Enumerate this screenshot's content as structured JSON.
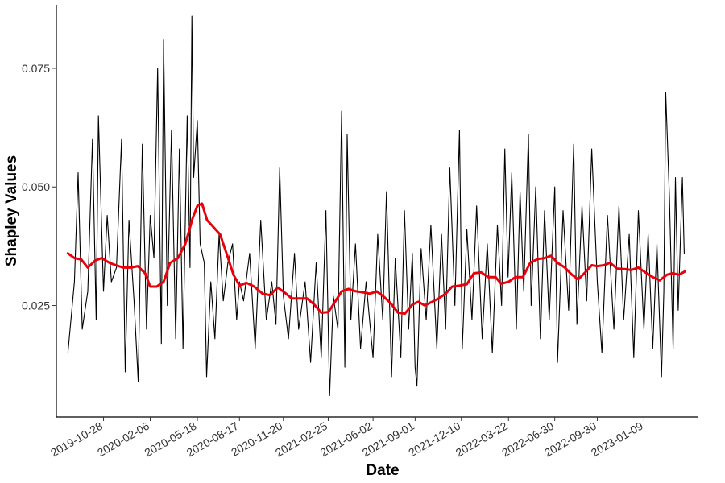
{
  "chart_data": {
    "type": "line",
    "title": "",
    "xlabel": "Date",
    "ylabel": "Shapley Values",
    "x_ticks": [
      "2019-10-28",
      "2020-02-06",
      "2020-05-18",
      "2020-08-17",
      "2020-11-20",
      "2021-02-25",
      "2021-06-02",
      "2021-09-01",
      "2021-12-10",
      "2022-03-22",
      "2022-06-30",
      "2022-09-30",
      "2023-01-09"
    ],
    "y_ticks": [
      0.025,
      0.05,
      0.075
    ],
    "y_tick_labels": [
      "0.025",
      "0.050",
      "0.075"
    ],
    "xlim": [
      "2019-07-18",
      "2023-05-05"
    ],
    "ylim": [
      0.0015,
      0.0884
    ],
    "grid": false,
    "legend": "none",
    "series": [
      {
        "color": "#000000",
        "points": [
          [
            "2019-08-12",
            0.015
          ],
          [
            "2019-08-26",
            0.03
          ],
          [
            "2019-09-03",
            0.053
          ],
          [
            "2019-09-12",
            0.02
          ],
          [
            "2019-09-24",
            0.028
          ],
          [
            "2019-10-04",
            0.06
          ],
          [
            "2019-10-12",
            0.022
          ],
          [
            "2019-10-17",
            0.065
          ],
          [
            "2019-10-28",
            0.028
          ],
          [
            "2019-11-05",
            0.044
          ],
          [
            "2019-11-14",
            0.03
          ],
          [
            "2019-11-25",
            0.033
          ],
          [
            "2019-12-06",
            0.06
          ],
          [
            "2019-12-14",
            0.011
          ],
          [
            "2019-12-22",
            0.043
          ],
          [
            "2020-01-02",
            0.026
          ],
          [
            "2020-01-11",
            0.009
          ],
          [
            "2020-01-20",
            0.059
          ],
          [
            "2020-01-29",
            0.02
          ],
          [
            "2020-02-06",
            0.044
          ],
          [
            "2020-02-14",
            0.035
          ],
          [
            "2020-02-22",
            0.075
          ],
          [
            "2020-03-01",
            0.017
          ],
          [
            "2020-03-06",
            0.081
          ],
          [
            "2020-03-14",
            0.025
          ],
          [
            "2020-03-23",
            0.062
          ],
          [
            "2020-04-01",
            0.018
          ],
          [
            "2020-04-09",
            0.058
          ],
          [
            "2020-04-17",
            0.016
          ],
          [
            "2020-04-26",
            0.065
          ],
          [
            "2020-05-02",
            0.033
          ],
          [
            "2020-05-06",
            0.086
          ],
          [
            "2020-05-10",
            0.052
          ],
          [
            "2020-05-18",
            0.064
          ],
          [
            "2020-05-24",
            0.038
          ],
          [
            "2020-06-02",
            0.034
          ],
          [
            "2020-06-07",
            0.01
          ],
          [
            "2020-06-16",
            0.03
          ],
          [
            "2020-06-25",
            0.018
          ],
          [
            "2020-07-04",
            0.04
          ],
          [
            "2020-07-13",
            0.026
          ],
          [
            "2020-07-23",
            0.034
          ],
          [
            "2020-08-02",
            0.038
          ],
          [
            "2020-08-11",
            0.022
          ],
          [
            "2020-08-17",
            0.03
          ],
          [
            "2020-08-26",
            0.026
          ],
          [
            "2020-09-08",
            0.036
          ],
          [
            "2020-09-20",
            0.016
          ],
          [
            "2020-10-02",
            0.043
          ],
          [
            "2020-10-14",
            0.022
          ],
          [
            "2020-10-26",
            0.03
          ],
          [
            "2020-11-04",
            0.021
          ],
          [
            "2020-11-12",
            0.054
          ],
          [
            "2020-11-20",
            0.027
          ],
          [
            "2020-12-01",
            0.018
          ],
          [
            "2020-12-14",
            0.036
          ],
          [
            "2020-12-23",
            0.02
          ],
          [
            "2021-01-06",
            0.03
          ],
          [
            "2021-01-18",
            0.013
          ],
          [
            "2021-01-30",
            0.034
          ],
          [
            "2021-02-10",
            0.014
          ],
          [
            "2021-02-20",
            0.045
          ],
          [
            "2021-02-28",
            0.006
          ],
          [
            "2021-03-08",
            0.027
          ],
          [
            "2021-03-18",
            0.02
          ],
          [
            "2021-03-26",
            0.066
          ],
          [
            "2021-04-02",
            0.012
          ],
          [
            "2021-04-07",
            0.061
          ],
          [
            "2021-04-15",
            0.022
          ],
          [
            "2021-04-25",
            0.038
          ],
          [
            "2021-05-06",
            0.016
          ],
          [
            "2021-05-18",
            0.03
          ],
          [
            "2021-06-02",
            0.014
          ],
          [
            "2021-06-12",
            0.04
          ],
          [
            "2021-06-23",
            0.022
          ],
          [
            "2021-07-01",
            0.049
          ],
          [
            "2021-07-12",
            0.01
          ],
          [
            "2021-07-20",
            0.035
          ],
          [
            "2021-08-01",
            0.014
          ],
          [
            "2021-08-09",
            0.045
          ],
          [
            "2021-08-18",
            0.02
          ],
          [
            "2021-08-26",
            0.036
          ],
          [
            "2021-09-01",
            0.012
          ],
          [
            "2021-09-05",
            0.008
          ],
          [
            "2021-09-14",
            0.037
          ],
          [
            "2021-09-25",
            0.022
          ],
          [
            "2021-10-05",
            0.042
          ],
          [
            "2021-10-18",
            0.016
          ],
          [
            "2021-10-28",
            0.04
          ],
          [
            "2021-11-06",
            0.02
          ],
          [
            "2021-11-15",
            0.054
          ],
          [
            "2021-11-26",
            0.025
          ],
          [
            "2021-12-06",
            0.062
          ],
          [
            "2021-12-12",
            0.016
          ],
          [
            "2021-12-22",
            0.041
          ],
          [
            "2022-01-02",
            0.022
          ],
          [
            "2022-01-12",
            0.046
          ],
          [
            "2022-01-24",
            0.018
          ],
          [
            "2022-02-04",
            0.038
          ],
          [
            "2022-02-15",
            0.015
          ],
          [
            "2022-02-26",
            0.042
          ],
          [
            "2022-03-07",
            0.025
          ],
          [
            "2022-03-14",
            0.058
          ],
          [
            "2022-03-21",
            0.031
          ],
          [
            "2022-03-29",
            0.053
          ],
          [
            "2022-04-08",
            0.02
          ],
          [
            "2022-04-16",
            0.049
          ],
          [
            "2022-04-24",
            0.028
          ],
          [
            "2022-05-04",
            0.061
          ],
          [
            "2022-05-10",
            0.025
          ],
          [
            "2022-05-20",
            0.05
          ],
          [
            "2022-05-30",
            0.018
          ],
          [
            "2022-06-08",
            0.045
          ],
          [
            "2022-06-18",
            0.022
          ],
          [
            "2022-06-30",
            0.05
          ],
          [
            "2022-07-06",
            0.013
          ],
          [
            "2022-07-18",
            0.045
          ],
          [
            "2022-07-30",
            0.024
          ],
          [
            "2022-08-10",
            0.059
          ],
          [
            "2022-08-17",
            0.021
          ],
          [
            "2022-08-28",
            0.046
          ],
          [
            "2022-09-07",
            0.026
          ],
          [
            "2022-09-18",
            0.058
          ],
          [
            "2022-09-30",
            0.03
          ],
          [
            "2022-10-10",
            0.015
          ],
          [
            "2022-10-22",
            0.044
          ],
          [
            "2022-11-05",
            0.02
          ],
          [
            "2022-11-16",
            0.046
          ],
          [
            "2022-11-26",
            0.022
          ],
          [
            "2022-12-08",
            0.04
          ],
          [
            "2022-12-18",
            0.014
          ],
          [
            "2022-12-28",
            0.045
          ],
          [
            "2023-01-09",
            0.02
          ],
          [
            "2023-01-18",
            0.04
          ],
          [
            "2023-01-28",
            0.016
          ],
          [
            "2023-02-06",
            0.038
          ],
          [
            "2023-02-16",
            0.01
          ],
          [
            "2023-02-21",
            0.028
          ],
          [
            "2023-02-25",
            0.07
          ],
          [
            "2023-03-05",
            0.048
          ],
          [
            "2023-03-13",
            0.016
          ],
          [
            "2023-03-18",
            0.052
          ],
          [
            "2023-03-24",
            0.024
          ],
          [
            "2023-04-02",
            0.052
          ],
          [
            "2023-04-06",
            0.036
          ]
        ]
      },
      {
        "color": "#e8000b",
        "points": [
          [
            "2019-08-12",
            0.036
          ],
          [
            "2019-08-26",
            0.035
          ],
          [
            "2019-09-10",
            0.0347
          ],
          [
            "2019-09-24",
            0.033
          ],
          [
            "2019-10-10",
            0.0345
          ],
          [
            "2019-10-24",
            0.035
          ],
          [
            "2019-11-10",
            0.034
          ],
          [
            "2019-11-24",
            0.0335
          ],
          [
            "2019-12-10",
            0.033
          ],
          [
            "2019-12-26",
            0.033
          ],
          [
            "2020-01-10",
            0.0333
          ],
          [
            "2020-01-26",
            0.0318
          ],
          [
            "2020-02-06",
            0.029
          ],
          [
            "2020-02-20",
            0.029
          ],
          [
            "2020-03-06",
            0.03
          ],
          [
            "2020-03-20",
            0.034
          ],
          [
            "2020-04-06",
            0.035
          ],
          [
            "2020-04-22",
            0.038
          ],
          [
            "2020-05-08",
            0.0435
          ],
          [
            "2020-05-18",
            0.046
          ],
          [
            "2020-05-28",
            0.0465
          ],
          [
            "2020-06-08",
            0.043
          ],
          [
            "2020-06-22",
            0.0415
          ],
          [
            "2020-07-06",
            0.04
          ],
          [
            "2020-07-20",
            0.036
          ],
          [
            "2020-08-04",
            0.0315
          ],
          [
            "2020-08-17",
            0.0292
          ],
          [
            "2020-09-01",
            0.0298
          ],
          [
            "2020-09-18",
            0.029
          ],
          [
            "2020-10-06",
            0.0275
          ],
          [
            "2020-10-22",
            0.0272
          ],
          [
            "2020-11-08",
            0.0288
          ],
          [
            "2020-11-22",
            0.0278
          ],
          [
            "2020-12-08",
            0.0265
          ],
          [
            "2020-12-24",
            0.0265
          ],
          [
            "2021-01-10",
            0.0265
          ],
          [
            "2021-01-26",
            0.0252
          ],
          [
            "2021-02-10",
            0.0235
          ],
          [
            "2021-02-25",
            0.0236
          ],
          [
            "2021-03-10",
            0.0255
          ],
          [
            "2021-03-26",
            0.028
          ],
          [
            "2021-04-10",
            0.0285
          ],
          [
            "2021-04-26",
            0.028
          ],
          [
            "2021-05-10",
            0.0278
          ],
          [
            "2021-05-26",
            0.0275
          ],
          [
            "2021-06-10",
            0.028
          ],
          [
            "2021-06-26",
            0.0268
          ],
          [
            "2021-07-10",
            0.0255
          ],
          [
            "2021-07-26",
            0.0235
          ],
          [
            "2021-08-10",
            0.0233
          ],
          [
            "2021-08-26",
            0.0252
          ],
          [
            "2021-09-08",
            0.0258
          ],
          [
            "2021-09-22",
            0.025
          ],
          [
            "2021-10-08",
            0.0258
          ],
          [
            "2021-10-22",
            0.0265
          ],
          [
            "2021-11-06",
            0.0275
          ],
          [
            "2021-11-20",
            0.029
          ],
          [
            "2021-12-06",
            0.0292
          ],
          [
            "2021-12-22",
            0.0295
          ],
          [
            "2022-01-06",
            0.0318
          ],
          [
            "2022-01-22",
            0.032
          ],
          [
            "2022-02-06",
            0.031
          ],
          [
            "2022-02-22",
            0.031
          ],
          [
            "2022-03-06",
            0.0296
          ],
          [
            "2022-03-22",
            0.03
          ],
          [
            "2022-04-06",
            0.031
          ],
          [
            "2022-04-22",
            0.031
          ],
          [
            "2022-05-08",
            0.034
          ],
          [
            "2022-05-24",
            0.0348
          ],
          [
            "2022-06-08",
            0.035
          ],
          [
            "2022-06-22",
            0.0355
          ],
          [
            "2022-07-06",
            0.034
          ],
          [
            "2022-07-22",
            0.033
          ],
          [
            "2022-08-06",
            0.0315
          ],
          [
            "2022-08-20",
            0.0305
          ],
          [
            "2022-09-04",
            0.032
          ],
          [
            "2022-09-18",
            0.0335
          ],
          [
            "2022-09-30",
            0.0333
          ],
          [
            "2022-10-14",
            0.0335
          ],
          [
            "2022-10-28",
            0.034
          ],
          [
            "2022-11-12",
            0.0328
          ],
          [
            "2022-11-28",
            0.0327
          ],
          [
            "2022-12-12",
            0.0325
          ],
          [
            "2022-12-28",
            0.033
          ],
          [
            "2023-01-12",
            0.032
          ],
          [
            "2023-01-28",
            0.031
          ],
          [
            "2023-02-12",
            0.0303
          ],
          [
            "2023-02-28",
            0.0315
          ],
          [
            "2023-03-12",
            0.0318
          ],
          [
            "2023-03-26",
            0.0315
          ],
          [
            "2023-04-08",
            0.0322
          ]
        ]
      }
    ]
  }
}
